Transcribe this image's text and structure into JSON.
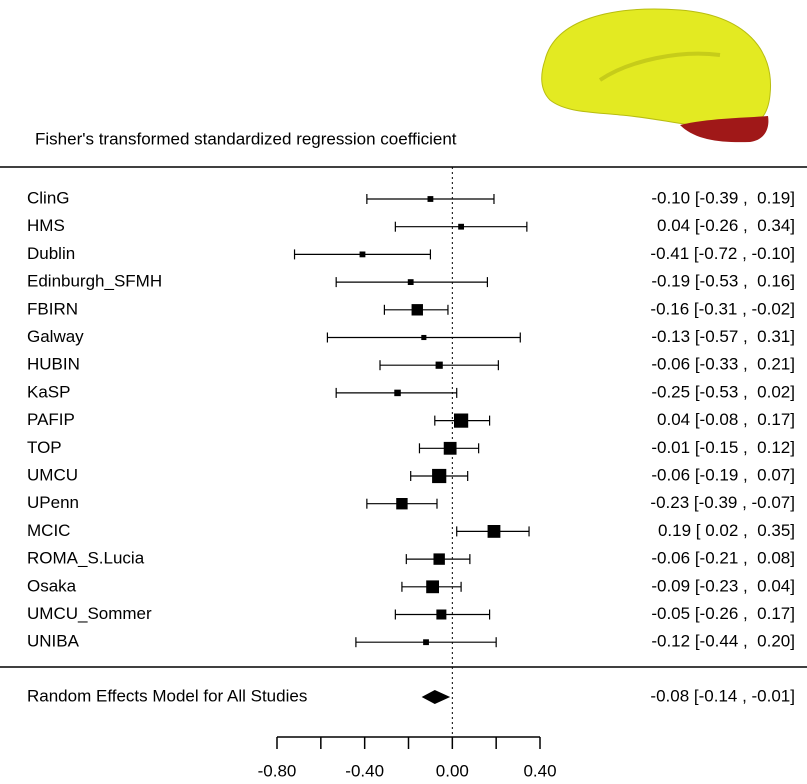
{
  "chart_data": {
    "type": "forest",
    "title": "Fisher's transformed standardized regression coefficient",
    "xlim": [
      -0.8,
      0.4
    ],
    "xticks": [
      {
        "value": -0.8,
        "label": "-0.80"
      },
      {
        "value": -0.4,
        "label": "-0.40"
      },
      {
        "value": 0,
        "label": "0.00"
      },
      {
        "value": 0.4,
        "label": "0.40"
      }
    ],
    "xticks_minor": [
      -0.6,
      -0.2,
      0.2
    ],
    "reference_line": 0,
    "color": "#000000",
    "studies": [
      {
        "name": "ClinG",
        "estimate": -0.1,
        "lower": -0.39,
        "upper": 0.19,
        "weight": 2,
        "label": "-0.10 [-0.39 ,  0.19]"
      },
      {
        "name": "HMS",
        "estimate": 0.04,
        "lower": -0.26,
        "upper": 0.34,
        "weight": 2,
        "label": "0.04 [-0.26 ,  0.34]"
      },
      {
        "name": "Dublin",
        "estimate": -0.41,
        "lower": -0.72,
        "upper": -0.1,
        "weight": 2,
        "label": "-0.41 [-0.72 , -0.10]"
      },
      {
        "name": "Edinburgh_SFMH",
        "estimate": -0.19,
        "lower": -0.53,
        "upper": 0.16,
        "weight": 2,
        "label": "-0.19 [-0.53 ,  0.16]"
      },
      {
        "name": "FBIRN",
        "estimate": -0.16,
        "lower": -0.31,
        "upper": -0.02,
        "weight": 6,
        "label": "-0.16 [-0.31 , -0.02]"
      },
      {
        "name": "Galway",
        "estimate": -0.13,
        "lower": -0.57,
        "upper": 0.31,
        "weight": 1.5,
        "label": "-0.13 [-0.57 ,  0.31]"
      },
      {
        "name": "HUBIN",
        "estimate": -0.06,
        "lower": -0.33,
        "upper": 0.21,
        "weight": 3,
        "label": "-0.06 [-0.33 ,  0.21]"
      },
      {
        "name": "KaSP",
        "estimate": -0.25,
        "lower": -0.53,
        "upper": 0.02,
        "weight": 2.5,
        "label": "-0.25 [-0.53 ,  0.02]"
      },
      {
        "name": "PAFIP",
        "estimate": 0.04,
        "lower": -0.08,
        "upper": 0.17,
        "weight": 8,
        "label": "0.04 [-0.08 ,  0.17]"
      },
      {
        "name": "TOP",
        "estimate": -0.01,
        "lower": -0.15,
        "upper": 0.12,
        "weight": 7,
        "label": "-0.01 [-0.15 ,  0.12]"
      },
      {
        "name": "UMCU",
        "estimate": -0.06,
        "lower": -0.19,
        "upper": 0.07,
        "weight": 8,
        "label": "-0.06 [-0.19 ,  0.07]"
      },
      {
        "name": "UPenn",
        "estimate": -0.23,
        "lower": -0.39,
        "upper": -0.07,
        "weight": 6,
        "label": "-0.23 [-0.39 , -0.07]"
      },
      {
        "name": "MCIC",
        "estimate": 0.19,
        "lower": 0.02,
        "upper": 0.35,
        "weight": 7,
        "label": "0.19 [ 0.02 ,  0.35]"
      },
      {
        "name": "ROMA_S.Lucia",
        "estimate": -0.06,
        "lower": -0.21,
        "upper": 0.08,
        "weight": 6,
        "label": "-0.06 [-0.21 ,  0.08]"
      },
      {
        "name": "Osaka",
        "estimate": -0.09,
        "lower": -0.23,
        "upper": 0.04,
        "weight": 7,
        "label": "-0.09 [-0.23 ,  0.04]"
      },
      {
        "name": "UMCU_Sommer",
        "estimate": -0.05,
        "lower": -0.26,
        "upper": 0.17,
        "weight": 5,
        "label": "-0.05 [-0.26 ,  0.17]"
      },
      {
        "name": "UNIBA",
        "estimate": -0.12,
        "lower": -0.44,
        "upper": 0.2,
        "weight": 2,
        "label": "-0.12 [-0.44 ,  0.20]"
      }
    ],
    "summary": {
      "name": "Random Effects Model for All Studies",
      "estimate": -0.08,
      "lower": -0.14,
      "upper": -0.01,
      "label": "-0.08 [-0.14 , -0.01]"
    }
  }
}
